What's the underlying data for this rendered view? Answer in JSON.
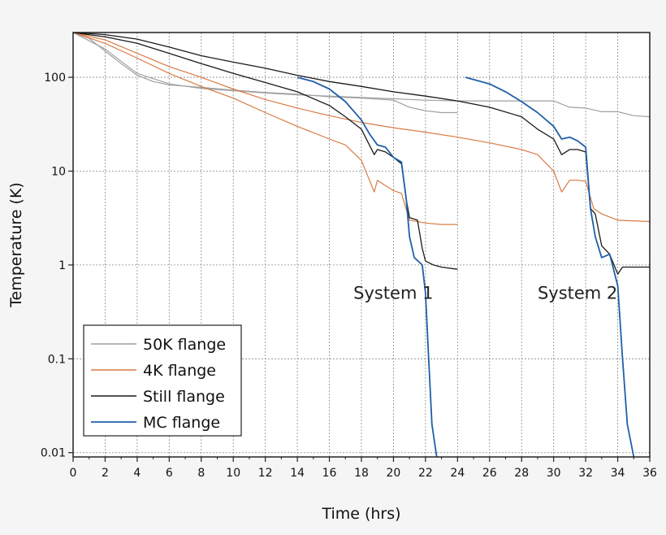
{
  "chart_data": {
    "type": "line",
    "title": "",
    "xlabel": "Time (hrs)",
    "ylabel": "Temperature (K)",
    "xlim": [
      0,
      36
    ],
    "ylim": [
      0.009,
      300
    ],
    "yscale": "log",
    "grid": true,
    "legend_position": "bottom-left",
    "x_ticks": [
      "0",
      "2",
      "4",
      "6",
      "8",
      "10",
      "12",
      "14",
      "16",
      "18",
      "20",
      "22",
      "24",
      "26",
      "28",
      "30",
      "32",
      "34",
      "36"
    ],
    "y_ticks": [
      {
        "value": 100,
        "label": "100"
      },
      {
        "value": 10,
        "label": "10"
      },
      {
        "value": 1,
        "label": "1"
      },
      {
        "value": 0.1,
        "label": "0.1"
      },
      {
        "value": 0.01,
        "label": "0.01"
      }
    ],
    "annotations": [
      {
        "text": "System 1",
        "x": 17.5,
        "y": 0.5
      },
      {
        "text": "System 2",
        "x": 29.0,
        "y": 0.5
      }
    ],
    "series": [
      {
        "name": "50K flange",
        "color": "#a0a0a0",
        "width": 1.2,
        "runs": [
          [
            [
              0,
              300
            ],
            [
              1,
              260
            ],
            [
              2,
              190
            ],
            [
              3,
              140
            ],
            [
              4,
              105
            ],
            [
              5,
              90
            ],
            [
              6,
              83
            ],
            [
              8,
              78
            ],
            [
              10,
              73
            ],
            [
              12,
              69
            ],
            [
              14,
              66
            ],
            [
              16,
              62
            ],
            [
              18,
              60
            ],
            [
              20,
              57
            ],
            [
              21,
              48
            ],
            [
              22,
              44
            ],
            [
              23,
              42
            ],
            [
              24,
              42
            ]
          ],
          [
            [
              0,
              300
            ],
            [
              2,
              200
            ],
            [
              4,
              110
            ],
            [
              6,
              85
            ],
            [
              8,
              76
            ],
            [
              10,
              72
            ],
            [
              12,
              68
            ],
            [
              14,
              65
            ],
            [
              16,
              63
            ],
            [
              18,
              61
            ],
            [
              20,
              59
            ],
            [
              22,
              57
            ],
            [
              24,
              56
            ],
            [
              26,
              56
            ],
            [
              28,
              56
            ],
            [
              30,
              56
            ],
            [
              31,
              48
            ],
            [
              32,
              47
            ],
            [
              33,
              43
            ],
            [
              34,
              43
            ],
            [
              35,
              39
            ],
            [
              36,
              38
            ]
          ]
        ]
      },
      {
        "name": "4K flange",
        "color": "#d97b45",
        "width": 1.2,
        "runs": [
          [
            [
              0,
              300
            ],
            [
              2,
              230
            ],
            [
              4,
              160
            ],
            [
              6,
              110
            ],
            [
              8,
              80
            ],
            [
              10,
              60
            ],
            [
              12,
              42
            ],
            [
              14,
              30
            ],
            [
              16,
              22
            ],
            [
              17,
              19
            ],
            [
              18,
              13
            ],
            [
              18.8,
              6
            ],
            [
              19,
              8
            ],
            [
              19.5,
              7
            ],
            [
              20,
              6.2
            ],
            [
              20.5,
              5.8
            ],
            [
              21,
              3
            ],
            [
              22,
              2.8
            ],
            [
              23,
              2.7
            ],
            [
              24,
              2.7
            ]
          ],
          [
            [
              0,
              300
            ],
            [
              2,
              250
            ],
            [
              4,
              180
            ],
            [
              6,
              130
            ],
            [
              8,
              100
            ],
            [
              10,
              75
            ],
            [
              12,
              58
            ],
            [
              14,
              47
            ],
            [
              16,
              39
            ],
            [
              18,
              33
            ],
            [
              20,
              29
            ],
            [
              22,
              26
            ],
            [
              24,
              23
            ],
            [
              26,
              20
            ],
            [
              28,
              17
            ],
            [
              29,
              15
            ],
            [
              30,
              10
            ],
            [
              30.5,
              6
            ],
            [
              31,
              8
            ],
            [
              31.5,
              8
            ],
            [
              32,
              7.8
            ],
            [
              32.5,
              4
            ],
            [
              33,
              3.5
            ],
            [
              34,
              3
            ],
            [
              36,
              2.9
            ]
          ]
        ]
      },
      {
        "name": "Still flange",
        "color": "#1a1a1a",
        "width": 1.3,
        "runs": [
          [
            [
              0,
              300
            ],
            [
              2,
              270
            ],
            [
              4,
              230
            ],
            [
              6,
              180
            ],
            [
              8,
              140
            ],
            [
              10,
              110
            ],
            [
              12,
              88
            ],
            [
              14,
              70
            ],
            [
              16,
              50
            ],
            [
              17,
              38
            ],
            [
              18,
              28
            ],
            [
              18.8,
              15
            ],
            [
              19,
              17
            ],
            [
              19.5,
              16
            ],
            [
              20,
              14
            ],
            [
              20.5,
              12
            ],
            [
              20.8,
              5
            ],
            [
              21,
              3.2
            ],
            [
              21.5,
              3
            ],
            [
              21.8,
              1.5
            ],
            [
              22,
              1.1
            ],
            [
              22.5,
              1
            ],
            [
              23,
              0.95
            ],
            [
              24,
              0.9
            ]
          ],
          [
            [
              0,
              300
            ],
            [
              2,
              285
            ],
            [
              4,
              255
            ],
            [
              6,
              210
            ],
            [
              8,
              170
            ],
            [
              10,
              145
            ],
            [
              12,
              125
            ],
            [
              14,
              105
            ],
            [
              16,
              90
            ],
            [
              18,
              80
            ],
            [
              20,
              70
            ],
            [
              22,
              63
            ],
            [
              24,
              56
            ],
            [
              26,
              48
            ],
            [
              28,
              38
            ],
            [
              29,
              28
            ],
            [
              30,
              22
            ],
            [
              30.5,
              15
            ],
            [
              31,
              17
            ],
            [
              31.5,
              17
            ],
            [
              32,
              16
            ],
            [
              32.3,
              4
            ],
            [
              32.6,
              3.5
            ],
            [
              33,
              1.6
            ],
            [
              33.5,
              1.3
            ],
            [
              34,
              0.8
            ],
            [
              34.3,
              0.95
            ],
            [
              35,
              0.95
            ],
            [
              36,
              0.95
            ]
          ]
        ]
      },
      {
        "name": "MC flange",
        "color": "#1f5fa8",
        "width": 1.8,
        "runs": [
          [
            [
              14,
              100
            ],
            [
              15,
              90
            ],
            [
              16,
              75
            ],
            [
              17,
              55
            ],
            [
              18,
              35
            ],
            [
              18.5,
              25
            ],
            [
              19,
              19
            ],
            [
              19.5,
              18
            ],
            [
              20,
              14
            ],
            [
              20.5,
              12.5
            ],
            [
              20.8,
              5
            ],
            [
              21,
              2
            ],
            [
              21.3,
              1.2
            ],
            [
              21.8,
              1.0
            ],
            [
              22,
              0.5
            ],
            [
              22.2,
              0.1
            ],
            [
              22.4,
              0.02
            ],
            [
              22.7,
              0.009
            ]
          ],
          [
            [
              24.5,
              100
            ],
            [
              26,
              85
            ],
            [
              27,
              70
            ],
            [
              28,
              55
            ],
            [
              29,
              42
            ],
            [
              30,
              30
            ],
            [
              30.5,
              22
            ],
            [
              31,
              23
            ],
            [
              31.5,
              21
            ],
            [
              32,
              18
            ],
            [
              32.3,
              4
            ],
            [
              32.6,
              2
            ],
            [
              33,
              1.2
            ],
            [
              33.5,
              1.3
            ],
            [
              34,
              0.6
            ],
            [
              34.3,
              0.1
            ],
            [
              34.6,
              0.02
            ],
            [
              35,
              0.009
            ]
          ]
        ]
      }
    ]
  }
}
